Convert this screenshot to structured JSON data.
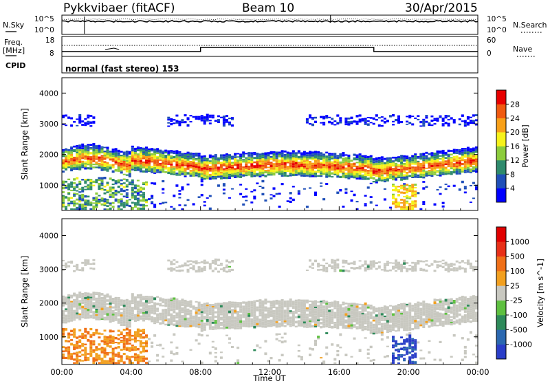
{
  "header": {
    "station": "Pykkvibaer (fitACF)",
    "beam": "Beam 10",
    "date": "30/Apr/2015"
  },
  "noise_panel": {
    "left_label": "N.Sky",
    "right_label": "N.Search",
    "left_ticks": [
      "10^5",
      "10^0"
    ],
    "right_ticks": [
      "10^5",
      "10^0"
    ]
  },
  "freq_panel": {
    "left_label_line1": "Freq.",
    "left_label_line2": "[MHz]",
    "right_label": "Nave",
    "left_ticks": [
      "18",
      "8"
    ],
    "right_ticks": [
      "60",
      "0"
    ]
  },
  "cpid": {
    "label": "CPID",
    "text": "normal (fast stereo) 153"
  },
  "power_colorbar": {
    "title": "Power [dB]",
    "ticks": [
      "28",
      "24",
      "20",
      "16",
      "12",
      "8",
      "4"
    ],
    "colors": [
      "#0000ff",
      "#1f4fb8",
      "#2e8a6c",
      "#8ccc3c",
      "#f6f21a",
      "#f8a018",
      "#f05a10",
      "#e80000"
    ]
  },
  "velocity_colorbar": {
    "title": "Velocity [m s^-1]",
    "ticks": [
      "1000",
      "500",
      "100",
      "25",
      "-25",
      "-100",
      "-500",
      "-1000"
    ],
    "colors": [
      "#2a3ec8",
      "#2b68b0",
      "#2e8a5a",
      "#5ec040",
      "#c8c8c0",
      "#f2a020",
      "#f07018",
      "#e83018",
      "#e00000"
    ]
  },
  "chart_data": [
    {
      "type": "heatmap",
      "name": "power",
      "ylabel": "Slant Range [km]",
      "xlim": [
        "00:00",
        "24:00"
      ],
      "ylim": [
        180,
        4500
      ],
      "y_ticks": [
        1000,
        2000,
        3000,
        4000
      ],
      "x_ticks": [
        "00:00",
        "04:00",
        "08:00",
        "12:00",
        "16:00",
        "20:00",
        "00:00"
      ]
    },
    {
      "type": "heatmap",
      "name": "velocity",
      "ylabel": "Slant Range [km]",
      "xlabel": "Time UT",
      "xlim": [
        "00:00",
        "24:00"
      ],
      "ylim": [
        180,
        4500
      ],
      "y_ticks": [
        1000,
        2000,
        3000,
        4000
      ],
      "x_ticks": [
        "00:00",
        "04:00",
        "08:00",
        "12:00",
        "16:00",
        "20:00",
        "00:00"
      ]
    }
  ]
}
